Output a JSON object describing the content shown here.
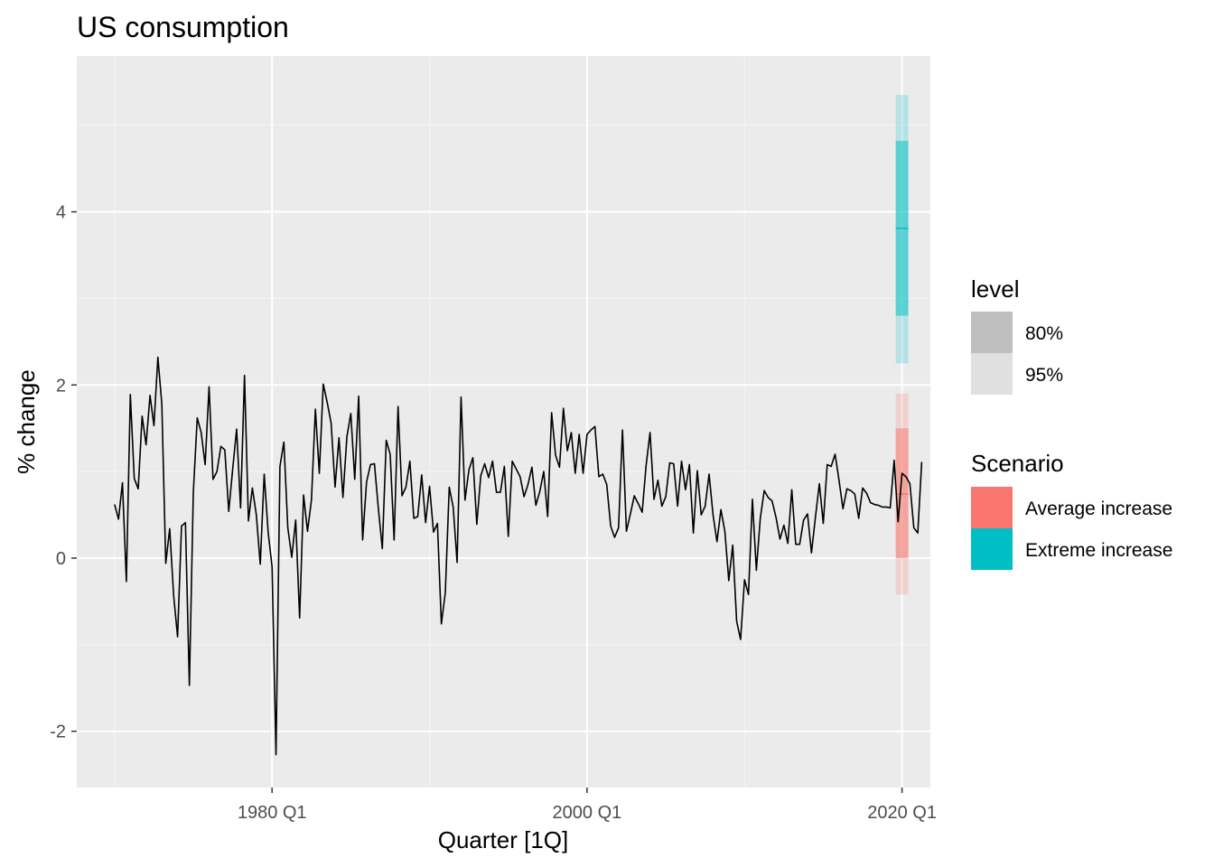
{
  "chart_data": {
    "type": "line",
    "title": "US consumption",
    "xlabel": "Quarter [1Q]",
    "ylabel": "% change",
    "xlim": [
      1967.6,
      2021.8
    ],
    "ylim": [
      -2.65,
      5.8
    ],
    "x_ticks": [
      {
        "value": 1980,
        "label": "1980 Q1"
      },
      {
        "value": 2000,
        "label": "2000 Q1"
      },
      {
        "value": 2020,
        "label": "2020 Q1"
      }
    ],
    "x_minor_ticks": [
      1970,
      1990,
      2010
    ],
    "y_ticks": [
      {
        "value": -2,
        "label": "-2"
      },
      {
        "value": 0,
        "label": "0"
      },
      {
        "value": 2,
        "label": "2"
      },
      {
        "value": 4,
        "label": "4"
      }
    ],
    "y_minor_ticks": [
      -1,
      1,
      3,
      5
    ],
    "grid": true,
    "series": [
      {
        "color": "#000000",
        "x_start": 1970.0,
        "x_step": 0.25,
        "values": [
          0.62,
          0.45,
          0.87,
          -0.27,
          1.89,
          0.92,
          0.8,
          1.64,
          1.31,
          1.88,
          1.53,
          2.32,
          1.78,
          -0.06,
          0.34,
          -0.43,
          -0.91,
          0.37,
          0.41,
          -1.47,
          0.76,
          1.62,
          1.45,
          1.08,
          1.98,
          0.91,
          1.0,
          1.29,
          1.25,
          0.54,
          1.03,
          1.49,
          0.58,
          2.11,
          0.43,
          0.81,
          0.5,
          -0.07,
          0.97,
          0.3,
          -0.1,
          -2.27,
          1.06,
          1.34,
          0.35,
          0.01,
          0.44,
          -0.69,
          0.73,
          0.31,
          0.67,
          1.72,
          0.98,
          2.01,
          1.8,
          1.56,
          0.82,
          1.39,
          0.7,
          1.4,
          1.67,
          0.91,
          1.87,
          0.21,
          0.88,
          1.08,
          1.09,
          0.57,
          0.11,
          1.36,
          1.2,
          0.21,
          1.75,
          0.72,
          0.82,
          1.12,
          0.46,
          0.48,
          0.96,
          0.41,
          0.83,
          0.3,
          0.4,
          -0.76,
          -0.4,
          0.82,
          0.59,
          -0.05,
          1.86,
          0.67,
          1.02,
          1.16,
          0.39,
          0.95,
          1.09,
          0.93,
          1.12,
          0.76,
          0.76,
          1.06,
          0.25,
          1.12,
          1.03,
          0.94,
          0.71,
          0.85,
          1.05,
          0.61,
          0.77,
          1.0,
          0.48,
          1.68,
          1.19,
          1.05,
          1.73,
          1.24,
          1.45,
          0.98,
          1.43,
          0.98,
          1.43,
          1.48,
          1.52,
          0.94,
          0.97,
          0.85,
          0.37,
          0.24,
          0.35,
          1.48,
          0.31,
          0.51,
          0.72,
          0.63,
          0.53,
          1.07,
          1.45,
          0.68,
          0.9,
          0.6,
          0.71,
          1.1,
          1.09,
          0.6,
          1.12,
          0.79,
          1.08,
          0.29,
          1.01,
          0.5,
          0.6,
          0.97,
          0.5,
          0.19,
          0.56,
          0.31,
          -0.26,
          0.15,
          -0.73,
          -0.94,
          -0.25,
          -0.42,
          0.68,
          -0.14,
          0.46,
          0.78,
          0.7,
          0.66,
          0.47,
          0.22,
          0.38,
          0.17,
          0.79,
          0.16,
          0.16,
          0.44,
          0.51,
          0.06,
          0.47,
          0.86,
          0.4,
          1.08,
          1.06,
          1.2,
          0.9,
          0.57,
          0.8,
          0.78,
          0.74,
          0.46,
          0.81,
          0.75,
          0.64,
          0.62,
          0.61,
          0.59,
          0.59,
          0.58,
          1.13,
          0.42,
          0.98,
          0.94,
          0.86,
          0.35,
          0.29,
          1.11
        ]
      }
    ],
    "forecast_x": 2020.0,
    "scenarios": [
      {
        "name": "Average increase",
        "color": "#F8766D",
        "mean": 0.74,
        "lo80": 0.0,
        "hi80": 1.5,
        "lo95": -0.42,
        "hi95": 1.9
      },
      {
        "name": "Extreme increase",
        "color": "#00BFC4",
        "mean": 3.81,
        "lo80": 2.8,
        "hi80": 4.82,
        "lo95": 2.25,
        "hi95": 5.35
      }
    ],
    "legend": {
      "position": "right",
      "level_title": "level",
      "levels": [
        {
          "label": "80%",
          "color": "#bfbfbf"
        },
        {
          "label": "95%",
          "color": "#e0e0e0"
        }
      ],
      "scenario_title": "Scenario"
    },
    "colors": {
      "panel_background": "#ebebeb",
      "grid_major": "#ffffff",
      "grid_minor": "#f5f5f5",
      "tick_text": "#4d4d4d"
    }
  }
}
